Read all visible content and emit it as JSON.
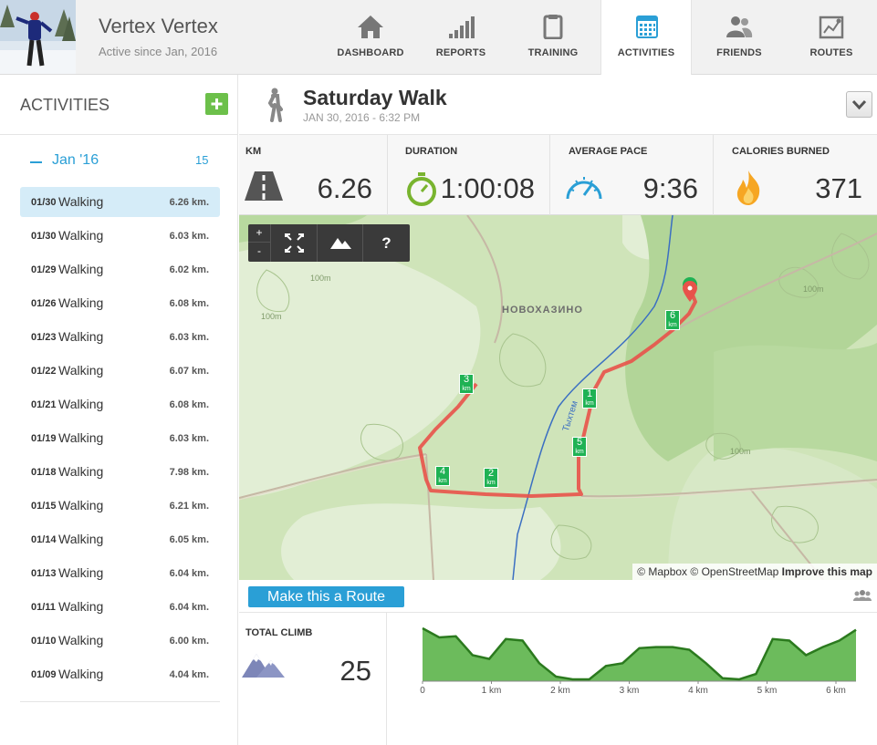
{
  "user": {
    "name": "Vertex Vertex",
    "since": "Active since Jan, 2016"
  },
  "nav": [
    {
      "label": "DASHBOARD",
      "icon": "home-icon"
    },
    {
      "label": "REPORTS",
      "icon": "bar-chart-icon"
    },
    {
      "label": "TRAINING",
      "icon": "clipboard-icon"
    },
    {
      "label": "ACTIVITIES",
      "icon": "calendar-icon",
      "active": true
    },
    {
      "label": "FRIENDS",
      "icon": "people-icon"
    },
    {
      "label": "ROUTES",
      "icon": "route-map-icon"
    }
  ],
  "sidebar": {
    "title": "ACTIVITIES",
    "month": "Jan '16",
    "month_count": "15",
    "items": [
      {
        "date": "01/30",
        "type": "Walking",
        "km": "6.26 km.",
        "selected": true
      },
      {
        "date": "01/30",
        "type": "Walking",
        "km": "6.03 km."
      },
      {
        "date": "01/29",
        "type": "Walking",
        "km": "6.02 km."
      },
      {
        "date": "01/26",
        "type": "Walking",
        "km": "6.08 km."
      },
      {
        "date": "01/23",
        "type": "Walking",
        "km": "6.03 km."
      },
      {
        "date": "01/22",
        "type": "Walking",
        "km": "6.07 km."
      },
      {
        "date": "01/21",
        "type": "Walking",
        "km": "6.08 km."
      },
      {
        "date": "01/19",
        "type": "Walking",
        "km": "6.03 km."
      },
      {
        "date": "01/18",
        "type": "Walking",
        "km": "7.98 km."
      },
      {
        "date": "01/15",
        "type": "Walking",
        "km": "6.21 km."
      },
      {
        "date": "01/14",
        "type": "Walking",
        "km": "6.05 km."
      },
      {
        "date": "01/13",
        "type": "Walking",
        "km": "6.04 km."
      },
      {
        "date": "01/11",
        "type": "Walking",
        "km": "6.04 km."
      },
      {
        "date": "01/10",
        "type": "Walking",
        "km": "6.00 km."
      },
      {
        "date": "01/09",
        "type": "Walking",
        "km": "4.04 km."
      }
    ]
  },
  "activity": {
    "title": "Saturday Walk",
    "date": "JAN 30, 2016 - 6:32 PM"
  },
  "stats": {
    "km": {
      "label": "KM",
      "value": "6.26"
    },
    "duration": {
      "label": "DURATION",
      "value": "1:00:08"
    },
    "pace": {
      "label": "AVERAGE PACE",
      "value": "9:36"
    },
    "calories": {
      "label": "CALORIES BURNED",
      "value": "371"
    }
  },
  "map": {
    "controls": {
      "zoom_in": "+",
      "zoom_out": "-",
      "help": "?"
    },
    "place_label": "НОВОХАЗИНО",
    "river_label": "Тыхтем",
    "contour_label": "100m",
    "km_markers": [
      "1",
      "2",
      "3",
      "4",
      "5",
      "6"
    ],
    "km_unit": "km",
    "attribution": {
      "mapbox": "© Mapbox",
      "osm": "© OpenStreetMap",
      "improve": "Improve this map"
    }
  },
  "route_button": "Make this a Route",
  "climb": {
    "label": "TOTAL CLIMB",
    "value": "25"
  },
  "elevation": {
    "x_ticks": [
      "0",
      "1 km",
      "2 km",
      "3 km",
      "4 km",
      "5 km",
      "6 km"
    ],
    "profile": [
      0.95,
      0.78,
      0.8,
      0.45,
      0.38,
      0.75,
      0.72,
      0.3,
      0.05,
      0.0,
      0.0,
      0.25,
      0.3,
      0.58,
      0.6,
      0.6,
      0.55,
      0.3,
      0.02,
      0.0,
      0.1,
      0.75,
      0.72,
      0.45,
      0.6,
      0.72,
      0.92
    ]
  },
  "colors": {
    "accent": "#2a9fd6",
    "add_green": "#6cc04a",
    "route": "#e8524a",
    "marker": "#1fb254",
    "map_green": "#b5d79e"
  }
}
